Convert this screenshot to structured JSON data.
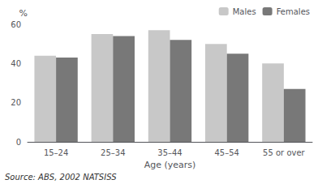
{
  "chart_data": {
    "type": "bar",
    "categories": [
      "15–24",
      "25–34",
      "35–44",
      "45–54",
      "55 or over"
    ],
    "series": [
      {
        "name": "Males",
        "color": "#c8c8c8",
        "values": [
          44,
          55,
          57,
          50,
          40
        ]
      },
      {
        "name": "Females",
        "color": "#787878",
        "values": [
          43,
          54,
          52,
          45,
          27
        ]
      }
    ],
    "ylabel": "%",
    "xlabel": "Age (years)",
    "ylim": [
      0,
      60
    ],
    "yticks": [
      0,
      20,
      40,
      60
    ],
    "grid": false,
    "legend": "upper right",
    "annotations": [
      "Source: ABS, 2002 NATSISS"
    ]
  }
}
